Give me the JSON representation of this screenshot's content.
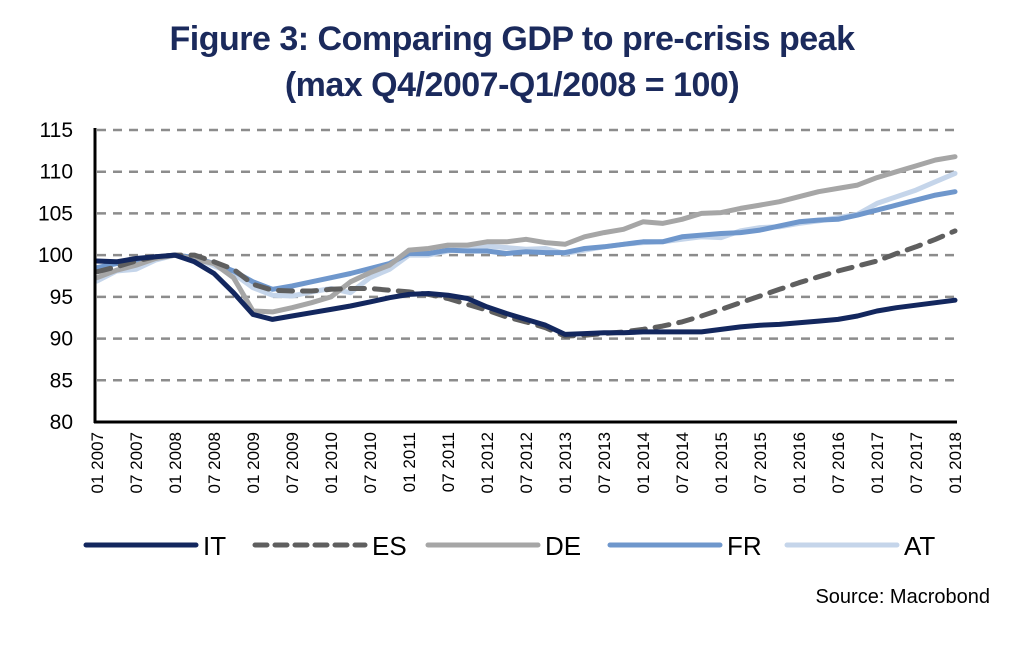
{
  "chart_data": {
    "type": "line",
    "title": "Figure 3: Comparing GDP to pre-crisis peak",
    "subtitle": "(max Q4/2007-Q1/2008 = 100)",
    "xlabel": "",
    "ylabel": "",
    "ylim": [
      80,
      115
    ],
    "yticks": [
      80,
      85,
      90,
      95,
      100,
      105,
      110,
      115
    ],
    "grid": "horizontal-dashed",
    "legend_position": "bottom",
    "x_tick_labels": [
      "01 2007",
      "07 2007",
      "01 2008",
      "07 2008",
      "01 2009",
      "07 2009",
      "01 2010",
      "07 2010",
      "01 2011",
      "07 2011",
      "01 2012",
      "07 2012",
      "01 2013",
      "07 2013",
      "01 2014",
      "07 2014",
      "01 2015",
      "07 2015",
      "01 2016",
      "07 2016",
      "01 2017",
      "07 2017",
      "01 2018"
    ],
    "x_quarters": 45,
    "series": [
      {
        "name": "IT",
        "color": "#13275e",
        "style": "solid",
        "values": [
          99.3,
          99.2,
          99.6,
          99.8,
          100.0,
          99.2,
          97.8,
          95.5,
          92.9,
          92.3,
          92.7,
          93.1,
          93.5,
          93.9,
          94.4,
          94.9,
          95.3,
          95.4,
          95.2,
          94.8,
          93.8,
          93.0,
          92.3,
          91.6,
          90.5,
          90.6,
          90.7,
          90.7,
          90.8,
          90.8,
          90.8,
          90.8,
          91.1,
          91.4,
          91.6,
          91.7,
          91.9,
          92.1,
          92.3,
          92.7,
          93.3,
          93.7,
          94.0,
          94.3,
          94.6
        ]
      },
      {
        "name": "ES",
        "color": "#5f5f5f",
        "style": "dashed",
        "values": [
          98.0,
          98.6,
          99.3,
          99.8,
          100.0,
          100.0,
          99.2,
          98.3,
          96.5,
          95.8,
          95.7,
          95.7,
          95.9,
          96.0,
          96.0,
          95.8,
          95.6,
          95.3,
          94.8,
          94.1,
          93.4,
          92.6,
          92.0,
          91.3,
          90.3,
          90.4,
          90.6,
          90.8,
          91.1,
          91.5,
          92.0,
          92.7,
          93.5,
          94.3,
          95.1,
          95.9,
          96.7,
          97.4,
          98.1,
          98.7,
          99.3,
          100.2,
          101.0,
          101.9,
          102.9
        ]
      },
      {
        "name": "DE",
        "color": "#a6a6a6",
        "style": "solid",
        "values": [
          97.3,
          98.2,
          98.8,
          99.6,
          100.0,
          99.5,
          99.0,
          97.3,
          93.3,
          93.2,
          93.7,
          94.3,
          95.0,
          96.8,
          97.9,
          98.8,
          100.6,
          100.8,
          101.2,
          101.2,
          101.6,
          101.6,
          101.9,
          101.5,
          101.3,
          102.2,
          102.7,
          103.1,
          104.0,
          103.8,
          104.3,
          105.0,
          105.1,
          105.6,
          106.0,
          106.4,
          107.0,
          107.6,
          108.0,
          108.4,
          109.3,
          110.0,
          110.7,
          111.4,
          111.8
        ]
      },
      {
        "name": "FR",
        "color": "#6f97cc",
        "style": "solid",
        "values": [
          98.5,
          99.0,
          99.3,
          99.7,
          100.0,
          99.7,
          99.0,
          98.1,
          96.8,
          95.9,
          96.3,
          96.8,
          97.3,
          97.8,
          98.4,
          99.0,
          100.2,
          100.2,
          100.6,
          100.5,
          100.5,
          100.2,
          100.4,
          100.3,
          100.3,
          100.8,
          101.0,
          101.3,
          101.6,
          101.6,
          102.2,
          102.4,
          102.6,
          102.7,
          103.0,
          103.5,
          104.0,
          104.2,
          104.3,
          104.8,
          105.4,
          106.0,
          106.6,
          107.2,
          107.6
        ]
      },
      {
        "name": "AT",
        "color": "#c5d5ea",
        "style": "solid",
        "values": [
          96.9,
          98.1,
          98.3,
          99.4,
          100.0,
          99.7,
          98.7,
          97.8,
          96.1,
          95.2,
          95.1,
          95.6,
          96.0,
          95.5,
          97.3,
          98.3,
          100.0,
          100.0,
          100.5,
          100.9,
          101.1,
          100.9,
          100.7,
          100.8,
          100.2,
          100.6,
          101.0,
          101.3,
          101.5,
          101.6,
          101.9,
          102.2,
          102.1,
          102.9,
          103.3,
          103.4,
          103.8,
          104.1,
          104.5,
          104.9,
          106.2,
          107.0,
          107.8,
          108.8,
          109.8
        ]
      }
    ],
    "source": "Source: Macrobond"
  }
}
